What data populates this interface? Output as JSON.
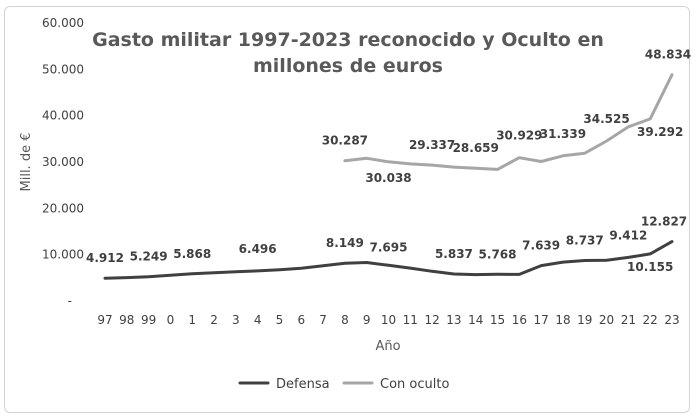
{
  "chart_data": {
    "type": "line",
    "title_lines": [
      "Gasto militar 1997-2023 reconocido y Oculto en",
      "millones de euros"
    ],
    "xlabel": "Año",
    "ylabel": "Mill. de €",
    "ylim": [
      0,
      60000
    ],
    "yticks": [
      {
        "value": 0,
        "label": "-"
      },
      {
        "value": 10000,
        "label": "10.000"
      },
      {
        "value": 20000,
        "label": "20.000"
      },
      {
        "value": 30000,
        "label": "30.000"
      },
      {
        "value": 40000,
        "label": "40.000"
      },
      {
        "value": 50000,
        "label": "50.000"
      },
      {
        "value": 60000,
        "label": "60.000"
      }
    ],
    "categories": [
      "97",
      "98",
      "99",
      "0",
      "1",
      "2",
      "3",
      "4",
      "5",
      "6",
      "7",
      "8",
      "9",
      "10",
      "11",
      "12",
      "13",
      "14",
      "15",
      "16",
      "17",
      "18",
      "19",
      "20",
      "21",
      "22",
      "23"
    ],
    "legend_position": "bottom",
    "series": [
      {
        "name": "Defensa",
        "color": "#404040",
        "values": [
          4912,
          5050,
          5249,
          5550,
          5868,
          6100,
          6300,
          6496,
          6750,
          7050,
          7600,
          8149,
          8300,
          7695,
          7100,
          6400,
          5837,
          5700,
          5768,
          5750,
          7639,
          8400,
          8737,
          8800,
          9412,
          10155,
          12827
        ],
        "labels": [
          {
            "index": 0,
            "text": "4.912"
          },
          {
            "index": 2,
            "text": "5.249"
          },
          {
            "index": 4,
            "text": "5.868"
          },
          {
            "index": 7,
            "text": "6.496"
          },
          {
            "index": 11,
            "text": "8.149"
          },
          {
            "index": 13,
            "text": "7.695"
          },
          {
            "index": 16,
            "text": "5.837"
          },
          {
            "index": 18,
            "text": "5.768"
          },
          {
            "index": 20,
            "text": "7.639"
          },
          {
            "index": 22,
            "text": "8.737"
          },
          {
            "index": 24,
            "text": "9.412"
          },
          {
            "index": 25,
            "text": "10.155"
          },
          {
            "index": 26,
            "text": "12.827"
          }
        ]
      },
      {
        "name": "Con oculto",
        "color": "#a6a6a6",
        "values": [
          null,
          null,
          null,
          null,
          null,
          null,
          null,
          null,
          null,
          null,
          null,
          30287,
          30800,
          30038,
          29600,
          29337,
          28900,
          28659,
          28400,
          30929,
          30100,
          31339,
          31900,
          34525,
          37600,
          39292,
          48834
        ],
        "labels": [
          {
            "index": 11,
            "text": "30.287"
          },
          {
            "index": 13,
            "text": "30.038"
          },
          {
            "index": 15,
            "text": "29.337"
          },
          {
            "index": 17,
            "text": "28.659"
          },
          {
            "index": 19,
            "text": "30.929"
          },
          {
            "index": 21,
            "text": "31.339"
          },
          {
            "index": 23,
            "text": "34.525"
          },
          {
            "index": 25,
            "text": "39.292"
          },
          {
            "index": 26,
            "text": "48.834"
          }
        ]
      }
    ]
  }
}
